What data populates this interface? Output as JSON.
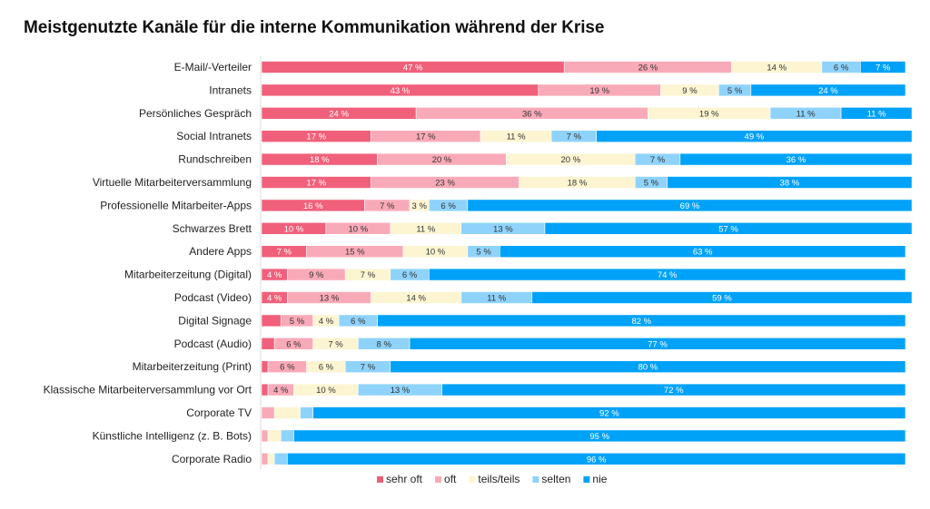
{
  "title": "Meistgenutzte Kanäle für die interne Kommunikation während der Krise",
  "chart_data": {
    "type": "bar",
    "orientation": "horizontal",
    "stacked": true,
    "title": "Meistgenutzte Kanäle für die interne Kommunikation während der Krise",
    "xlim": [
      0,
      100
    ],
    "unit": "%",
    "legend_position": "bottom",
    "grid": false,
    "categories": [
      "E-Mail/-Verteiler",
      "Intranets",
      "Persönliches Gespräch",
      "Social Intranets",
      "Rundschreiben",
      "Virtuelle Mitarbeiterversammlung",
      "Professionelle Mitarbeiter-Apps",
      "Schwarzes Brett",
      "Andere Apps",
      "Mitarbeiterzeitung (Digital)",
      "Podcast (Video)",
      "Digital Signage",
      "Podcast (Audio)",
      "Mitarbeiterzeitung (Print)",
      "Klassische Mitarbeiterversammlung vor Ort",
      "Corporate TV",
      "Künstliche Intelligenz (z. B. Bots)",
      "Corporate Radio"
    ],
    "series": [
      {
        "name": "sehr oft",
        "color": "#f0607a",
        "text_color": "#ffffff",
        "values": [
          47,
          43,
          24,
          17,
          18,
          17,
          16,
          10,
          7,
          4,
          4,
          3,
          2,
          1,
          1,
          0,
          0,
          0
        ],
        "labels": [
          "47 %",
          "43 %",
          "24 %",
          "17 %",
          "18 %",
          "17 %",
          "16 %",
          "10 %",
          "7 %",
          "4 %",
          "4 %",
          "",
          "",
          "",
          "",
          "",
          "",
          ""
        ]
      },
      {
        "name": "oft",
        "color": "#f9aab8",
        "text_color": "#333333",
        "values": [
          26,
          19,
          36,
          17,
          20,
          23,
          7,
          10,
          15,
          9,
          13,
          5,
          6,
          6,
          4,
          2,
          1,
          1
        ],
        "labels": [
          "26 %",
          "19 %",
          "36 %",
          "17 %",
          "20 %",
          "23 %",
          "7 %",
          "10 %",
          "15 %",
          "9 %",
          "13 %",
          "5 %",
          "6 %",
          "6 %",
          "4 %",
          "",
          "",
          ""
        ]
      },
      {
        "name": "teils/teils",
        "color": "#fdf5d2",
        "text_color": "#333333",
        "values": [
          14,
          9,
          19,
          11,
          20,
          18,
          3,
          11,
          10,
          7,
          14,
          4,
          7,
          6,
          10,
          4,
          2,
          1
        ],
        "labels": [
          "14 %",
          "9 %",
          "19 %",
          "11 %",
          "20 %",
          "18 %",
          "3 %",
          "11 %",
          "10 %",
          "7 %",
          "14 %",
          "4 %",
          "7 %",
          "6 %",
          "10 %",
          "",
          "",
          ""
        ]
      },
      {
        "name": "selten",
        "color": "#8fd3fb",
        "text_color": "#333333",
        "values": [
          6,
          5,
          11,
          7,
          7,
          5,
          6,
          13,
          5,
          6,
          11,
          6,
          8,
          7,
          13,
          2,
          2,
          2
        ],
        "labels": [
          "6 %",
          "5 %",
          "11 %",
          "7 %",
          "7 %",
          "5 %",
          "6 %",
          "13 %",
          "5 %",
          "6 %",
          "11 %",
          "6 %",
          "8 %",
          "7 %",
          "13 %",
          "",
          "",
          ""
        ]
      },
      {
        "name": "nie",
        "color": "#00a2f8",
        "text_color": "#ffffff",
        "values": [
          7,
          24,
          11,
          49,
          36,
          38,
          69,
          57,
          63,
          74,
          59,
          82,
          77,
          80,
          72,
          92,
          95,
          96
        ],
        "labels": [
          "7 %",
          "24 %",
          "11 %",
          "49 %",
          "36 %",
          "38 %",
          "69 %",
          "57 %",
          "63 %",
          "74 %",
          "59 %",
          "82 %",
          "77 %",
          "80 %",
          "72 %",
          "92 %",
          "95 %",
          "96 %"
        ]
      }
    ]
  }
}
